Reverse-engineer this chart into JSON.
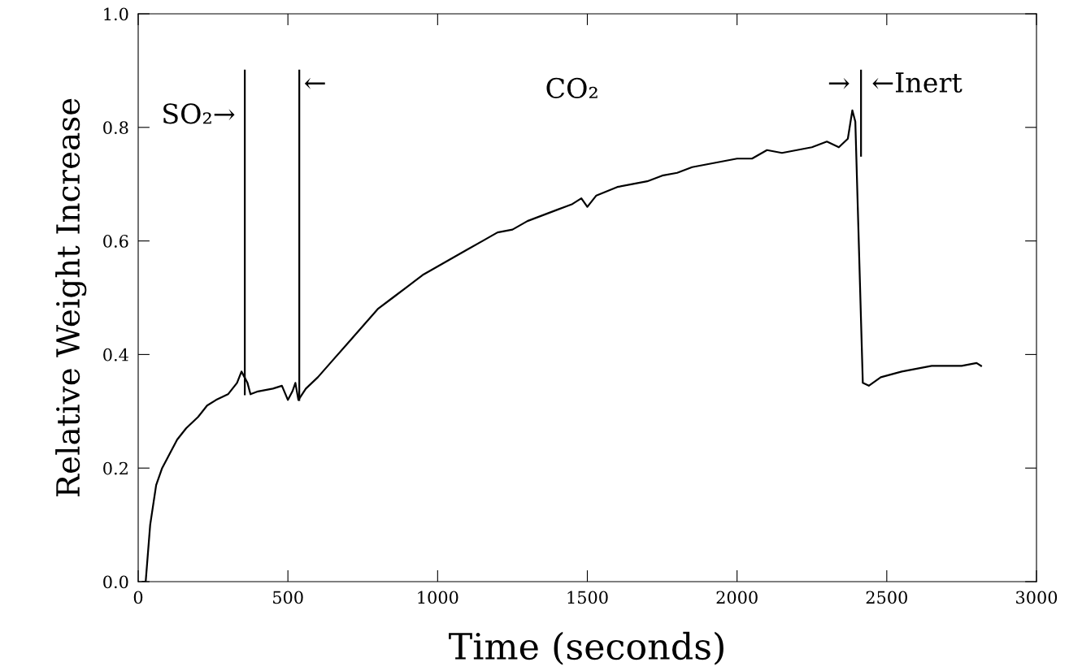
{
  "chart_data": {
    "type": "line",
    "xlabel": "Time (seconds)",
    "ylabel": "Relative Weight Increase",
    "xlim": [
      0,
      3000
    ],
    "ylim": [
      0.0,
      1.0
    ],
    "xticks": [
      {
        "value": 0,
        "label": "0"
      },
      500,
      1000,
      1500,
      2000,
      2500,
      3000
    ],
    "yticks": [
      {
        "value": 0,
        "label": "0.0"
      },
      0.2,
      0.4,
      0.6,
      0.8,
      {
        "value": 1,
        "label": "1.0"
      }
    ],
    "grid": false,
    "marker": "none",
    "line_style": "solid",
    "series": [
      {
        "color": "#000000",
        "x": [
          15,
          25,
          40,
          60,
          80,
          100,
          130,
          160,
          200,
          230,
          260,
          300,
          330,
          345,
          355,
          365,
          375,
          400,
          450,
          480,
          500,
          515,
          525,
          535,
          560,
          600,
          650,
          700,
          750,
          800,
          850,
          900,
          950,
          1000,
          1050,
          1100,
          1150,
          1200,
          1250,
          1300,
          1350,
          1400,
          1450,
          1480,
          1500,
          1530,
          1600,
          1650,
          1700,
          1750,
          1800,
          1850,
          1900,
          1950,
          2000,
          2050,
          2100,
          2150,
          2200,
          2250,
          2300,
          2340,
          2370,
          2385,
          2395,
          2420,
          2440,
          2480,
          2550,
          2600,
          2650,
          2700,
          2750,
          2800,
          2815
        ],
        "values": [
          0.0,
          0.0,
          0.1,
          0.17,
          0.2,
          0.22,
          0.25,
          0.27,
          0.29,
          0.31,
          0.32,
          0.33,
          0.35,
          0.37,
          0.36,
          0.35,
          0.33,
          0.335,
          0.34,
          0.345,
          0.32,
          0.335,
          0.35,
          0.32,
          0.34,
          0.36,
          0.39,
          0.42,
          0.45,
          0.48,
          0.5,
          0.52,
          0.54,
          0.555,
          0.57,
          0.585,
          0.6,
          0.615,
          0.62,
          0.635,
          0.645,
          0.655,
          0.665,
          0.675,
          0.66,
          0.68,
          0.695,
          0.7,
          0.705,
          0.715,
          0.72,
          0.73,
          0.735,
          0.74,
          0.745,
          0.745,
          0.76,
          0.755,
          0.76,
          0.765,
          0.775,
          0.765,
          0.78,
          0.83,
          0.81,
          0.35,
          0.345,
          0.36,
          0.37,
          0.375,
          0.38,
          0.38,
          0.38,
          0.385,
          0.38
        ]
      },
      {
        "color": "#000000",
        "x": [
          356,
          356
        ],
        "values": [
          0.33,
          0.9
        ]
      },
      {
        "color": "#000000",
        "x": [
          538,
          538
        ],
        "values": [
          0.32,
          0.9
        ]
      },
      {
        "color": "#000000",
        "x": [
          2414,
          2414
        ],
        "values": [
          0.75,
          0.9
        ]
      }
    ],
    "annotations": [
      "SO₂→",
      "←",
      "CO₂",
      "→",
      "←Inert"
    ]
  }
}
